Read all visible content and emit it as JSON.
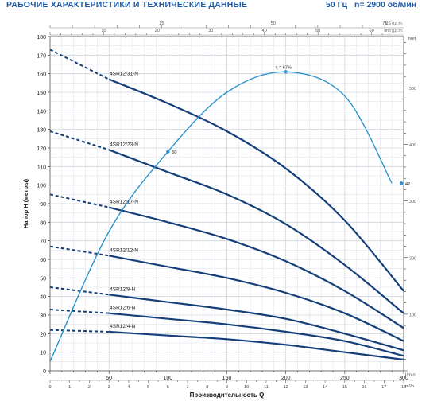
{
  "header": {
    "title": "РАБОЧИЕ ХАРАКТЕРИСТИКИ И ТЕХНИЧЕСКИЕ ДАННЫЕ",
    "frequency": "50 Гц",
    "speed": "n= 2900 об/мин"
  },
  "colors": {
    "pump_curve": "#153f78",
    "efficiency_curve": "#2a93c9",
    "grid": "#cfd6df",
    "header_text": "#1f5aa6",
    "axis_text": "#1a1a1a"
  },
  "chart_data": {
    "type": "line",
    "ylabel": "Напор H (метры)",
    "ylim": [
      0,
      180
    ],
    "yticks": [
      0,
      10,
      20,
      30,
      40,
      50,
      60,
      70,
      80,
      90,
      100,
      110,
      120,
      130,
      140,
      150,
      160,
      170,
      180
    ],
    "xlabel": "Производительность Q",
    "xlim": [
      0,
      300
    ],
    "xticks": [
      50,
      100,
      150,
      200,
      250,
      300
    ],
    "xunit": "l/min",
    "right_axis": {
      "unit": "feet",
      "ticks": [
        100,
        200,
        300,
        400,
        500
      ]
    },
    "top_axes": [
      {
        "unit": "US g.p.m.",
        "ticks": [
          25,
          50,
          75
        ]
      },
      {
        "unit": "Imp g.p.m.",
        "ticks": [
          10,
          20,
          30,
          40,
          50,
          60
        ]
      }
    ],
    "bottom_axis_m3h": {
      "unit": "m³/h",
      "ticks": [
        0,
        1,
        2,
        3,
        4,
        5,
        6,
        7,
        8,
        9,
        10,
        11,
        12,
        13,
        14,
        15,
        16,
        17,
        18
      ]
    },
    "series": [
      {
        "name": "4SR12/31-N",
        "dashed": {
          "x": [
            0,
            50
          ],
          "y": [
            173,
            157
          ]
        },
        "solid": {
          "x": [
            50,
            100,
            150,
            200,
            250,
            300
          ],
          "y": [
            157,
            144,
            129,
            109,
            81,
            43
          ]
        }
      },
      {
        "name": "4SR12/23-N",
        "dashed": {
          "x": [
            0,
            50
          ],
          "y": [
            129,
            119
          ]
        },
        "solid": {
          "x": [
            50,
            100,
            150,
            200,
            250,
            300
          ],
          "y": [
            119,
            107,
            95,
            79,
            57,
            31
          ]
        }
      },
      {
        "name": "4SR12/17-N",
        "dashed": {
          "x": [
            0,
            50
          ],
          "y": [
            95,
            88
          ]
        },
        "solid": {
          "x": [
            50,
            100,
            150,
            200,
            250,
            300
          ],
          "y": [
            88,
            80,
            71,
            59,
            43,
            23
          ]
        }
      },
      {
        "name": "4SR12/12-N",
        "dashed": {
          "x": [
            0,
            50
          ],
          "y": [
            67,
            62
          ]
        },
        "solid": {
          "x": [
            50,
            100,
            150,
            200,
            250,
            300
          ],
          "y": [
            62,
            56,
            50,
            42,
            31,
            16
          ]
        }
      },
      {
        "name": "4SR12/8-N",
        "dashed": {
          "x": [
            0,
            50
          ],
          "y": [
            45,
            41
          ]
        },
        "solid": {
          "x": [
            50,
            100,
            150,
            200,
            250,
            300
          ],
          "y": [
            41,
            37,
            33,
            28,
            20,
            11
          ]
        }
      },
      {
        "name": "4SR12/6-N",
        "dashed": {
          "x": [
            0,
            50
          ],
          "y": [
            33,
            31
          ]
        },
        "solid": {
          "x": [
            50,
            100,
            150,
            200,
            250,
            300
          ],
          "y": [
            31,
            28,
            25,
            21,
            16,
            8
          ]
        }
      },
      {
        "name": "4SR12/4-N",
        "dashed": {
          "x": [
            0,
            50
          ],
          "y": [
            22,
            21
          ]
        },
        "solid": {
          "x": [
            50,
            100,
            150,
            200,
            250,
            300
          ],
          "y": [
            21,
            19,
            17,
            14,
            10,
            6
          ]
        }
      }
    ],
    "efficiency": {
      "label": "η = 67%",
      "x": [
        0,
        50,
        100,
        150,
        200,
        250,
        290
      ],
      "y": [
        5,
        75,
        118,
        150,
        161,
        148,
        101
      ],
      "markers": [
        {
          "x": 100,
          "y": 118,
          "label": "50"
        },
        {
          "x": 200,
          "y": 161,
          "label": "η = 67%"
        },
        {
          "x": 298,
          "y": 101,
          "label": "42"
        }
      ]
    }
  }
}
